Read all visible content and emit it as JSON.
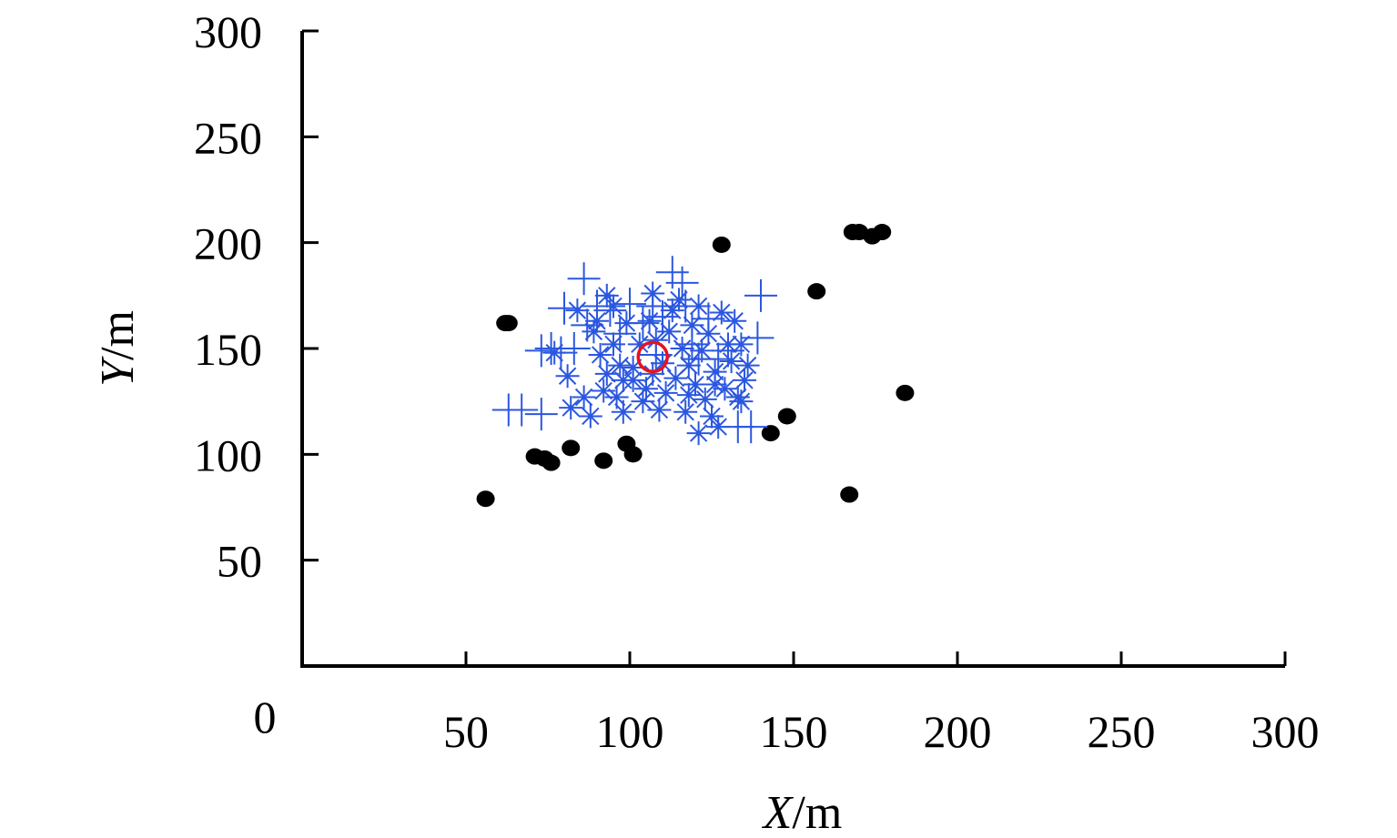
{
  "chart_data": {
    "type": "scatter",
    "xlabel": {
      "var": "X",
      "unit": "/m"
    },
    "ylabel": {
      "var": "Y",
      "unit": "/m"
    },
    "origin_label": "0",
    "xlim": [
      0,
      300
    ],
    "ylim": [
      0,
      300
    ],
    "xticks": [
      50,
      100,
      150,
      200,
      250,
      300
    ],
    "yticks": [
      50,
      100,
      150,
      200,
      250,
      300
    ],
    "grid": false,
    "colors": {
      "circles": "#000000",
      "plus": "#2b57e0",
      "star": "#2b57e0",
      "center": "#e8131d",
      "axis": "#000000"
    },
    "series": [
      {
        "marker": "filled-circle",
        "points": [
          [
            56,
            79
          ],
          [
            62,
            162
          ],
          [
            63,
            162
          ],
          [
            71,
            99
          ],
          [
            74,
            98
          ],
          [
            76,
            96
          ],
          [
            82,
            103
          ],
          [
            92,
            97
          ],
          [
            99,
            105
          ],
          [
            101,
            100
          ],
          [
            128,
            199
          ],
          [
            143,
            110
          ],
          [
            148,
            118
          ],
          [
            157,
            177
          ],
          [
            167,
            81
          ],
          [
            168,
            205
          ],
          [
            170,
            205
          ],
          [
            174,
            203
          ],
          [
            177,
            205
          ],
          [
            184,
            129
          ]
        ]
      },
      {
        "marker": "plus",
        "points": [
          [
            63,
            121
          ],
          [
            67,
            121
          ],
          [
            73,
            119
          ],
          [
            73,
            149
          ],
          [
            76,
            150
          ],
          [
            79,
            148
          ],
          [
            80,
            169
          ],
          [
            83,
            150
          ],
          [
            86,
            183
          ],
          [
            87,
            161
          ],
          [
            90,
            170
          ],
          [
            94,
            168
          ],
          [
            97,
            157
          ],
          [
            100,
            171
          ],
          [
            104,
            162
          ],
          [
            107,
            170
          ],
          [
            108,
            147
          ],
          [
            110,
            165
          ],
          [
            113,
            186
          ],
          [
            116,
            181
          ],
          [
            117,
            170
          ],
          [
            119,
            152
          ],
          [
            121,
            145
          ],
          [
            124,
            164
          ],
          [
            127,
            145
          ],
          [
            130,
            149
          ],
          [
            133,
            113
          ],
          [
            137,
            113
          ],
          [
            139,
            155
          ],
          [
            140,
            175
          ]
        ]
      },
      {
        "marker": "star",
        "points": [
          [
            77,
            148
          ],
          [
            81,
            137
          ],
          [
            82,
            122
          ],
          [
            86,
            127
          ],
          [
            88,
            118
          ],
          [
            89,
            158
          ],
          [
            91,
            147
          ],
          [
            93,
            138
          ],
          [
            93,
            175
          ],
          [
            95,
            152
          ],
          [
            96,
            127
          ],
          [
            97,
            142
          ],
          [
            98,
            135
          ],
          [
            99,
            162
          ],
          [
            101,
            141
          ],
          [
            103,
            152
          ],
          [
            104,
            125
          ],
          [
            105,
            131
          ],
          [
            106,
            163
          ],
          [
            107,
            138
          ],
          [
            107,
            176
          ],
          [
            108,
            154
          ],
          [
            110,
            143
          ],
          [
            111,
            129
          ],
          [
            112,
            158
          ],
          [
            113,
            168
          ],
          [
            114,
            136
          ],
          [
            116,
            150
          ],
          [
            117,
            120
          ],
          [
            118,
            142
          ],
          [
            119,
            161
          ],
          [
            120,
            133
          ],
          [
            121,
            110
          ],
          [
            122,
            149
          ],
          [
            123,
            126
          ],
          [
            124,
            157
          ],
          [
            125,
            118
          ],
          [
            126,
            139
          ],
          [
            127,
            113
          ],
          [
            128,
            167
          ],
          [
            129,
            131
          ],
          [
            131,
            144
          ],
          [
            132,
            163
          ],
          [
            133,
            127
          ],
          [
            134,
            152
          ],
          [
            135,
            135
          ],
          [
            136,
            142
          ],
          [
            84,
            168
          ],
          [
            90,
            163
          ],
          [
            95,
            170
          ],
          [
            101,
            135
          ],
          [
            109,
            121
          ],
          [
            115,
            173
          ],
          [
            121,
            170
          ],
          [
            126,
            133
          ],
          [
            130,
            152
          ],
          [
            134,
            125
          ],
          [
            92,
            130
          ],
          [
            98,
            120
          ],
          [
            118,
            128
          ]
        ]
      },
      {
        "marker": "open-circle",
        "points": [
          [
            107,
            146
          ]
        ]
      }
    ]
  }
}
